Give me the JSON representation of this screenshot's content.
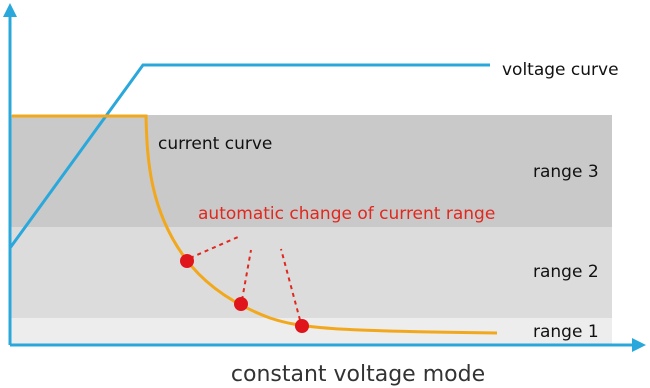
{
  "labels": {
    "voltage_curve": "voltage curve",
    "current_curve": "current curve",
    "range_3": "range 3",
    "range_2": "range 2",
    "range_1": "range 1",
    "annotation": "automatic change of current range",
    "x_axis": "constant voltage mode"
  }
}
